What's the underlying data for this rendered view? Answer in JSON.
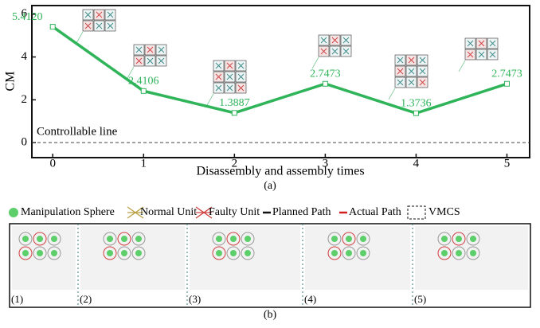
{
  "chart_data": {
    "type": "line",
    "x_label": "Disassembly and assembly times",
    "y_label": "CM",
    "x": [
      0,
      1,
      2,
      3,
      4,
      5
    ],
    "series": [
      {
        "name": "CM",
        "color": "#2fb45a",
        "values": [
          5.412,
          2.4106,
          1.3887,
          2.7473,
          1.3736,
          2.7473
        ],
        "value_labels": [
          "5.4120",
          "2.4106",
          "1.3887",
          "2.7473",
          "1.3736",
          "2.7473"
        ]
      }
    ],
    "xlim": [
      -0.23,
      5.25
    ],
    "ylim": [
      -0.7,
      6.4
    ],
    "xticks": [
      0,
      1,
      2,
      3,
      4,
      5
    ],
    "yticks": [
      0,
      2,
      4,
      6
    ],
    "reference_line": {
      "label": "Controllable line",
      "value": 0
    },
    "caption": "(a)"
  },
  "legend": [
    "Manipulation Sphere",
    "Normal Unit",
    "Faulty Unit",
    "Planned Path",
    "Actual Path",
    "VMCS"
  ],
  "panels": [
    "(1)",
    "(2)",
    "(3)",
    "(4)",
    "(5)"
  ],
  "caption": "(b)"
}
